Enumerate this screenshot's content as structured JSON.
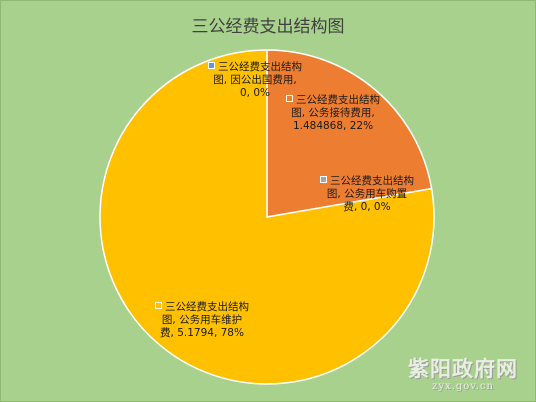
{
  "chart_data": {
    "type": "pie",
    "title": "三公经费支出结构图",
    "slices": [
      {
        "name": "三公经费支出结构图, 因公出国费用",
        "value": 0,
        "percent": "0%",
        "color": "#5b9bd5",
        "label_lines": [
          "三公经费支出结构",
          "图, 因公出国费用,",
          "0, 0%"
        ]
      },
      {
        "name": "三公经费支出结构图, 公务接待费用",
        "value": 1.484868,
        "percent": "22%",
        "color": "#ed7d31",
        "label_lines": [
          "三公经费支出结构",
          "图, 公务接待费用,",
          "1.484868, 22%"
        ]
      },
      {
        "name": "三公经费支出结构图, 公务用车购置费",
        "value": 0,
        "percent": "0%",
        "color": "#a5a5a5",
        "label_lines": [
          "三公经费支出结构",
          "图, 公务用车购置",
          "费, 0, 0%"
        ]
      },
      {
        "name": "三公经费支出结构图, 公务用车维护费",
        "value": 5.1794,
        "percent": "78%",
        "color": "#ffc000",
        "label_lines": [
          "三公经费支出结构",
          "图, 公务用车维护",
          "费, 5.1794, 78%"
        ]
      }
    ]
  },
  "watermark": {
    "title": "紫阳政府网",
    "url": "zyx.gov.cn"
  }
}
